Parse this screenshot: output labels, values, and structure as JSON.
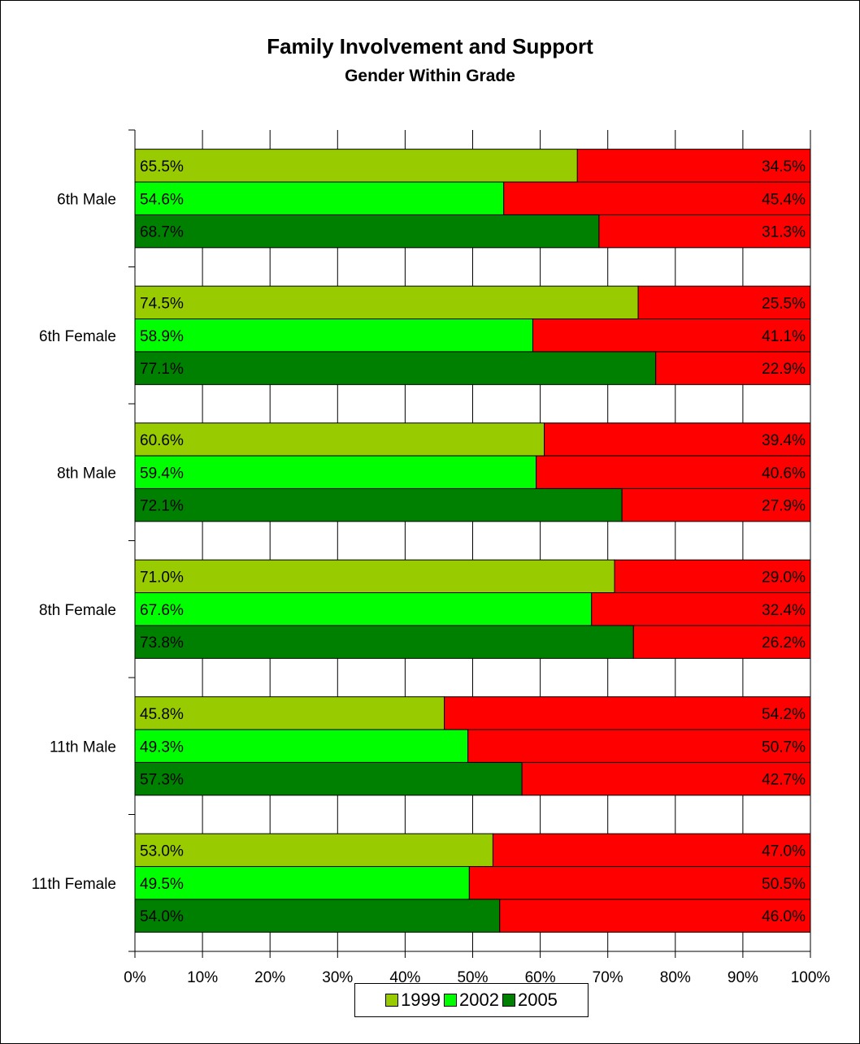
{
  "chart_data": {
    "type": "bar",
    "orientation": "horizontal",
    "stacked": "percent",
    "title": "Family Involvement and Support",
    "subtitle": "Gender Within Grade",
    "categories": [
      "6th Male",
      "6th Female",
      "8th Male",
      "8th Female",
      "11th Male",
      "11th Female"
    ],
    "series": [
      {
        "name": "1999",
        "color": "#99cc00",
        "values": [
          65.5,
          74.5,
          60.6,
          71.0,
          45.8,
          53.0
        ],
        "value_labels": [
          "65.5%",
          "74.5%",
          "60.6%",
          "71.0%",
          "45.8%",
          "53.0%"
        ]
      },
      {
        "name": "2002",
        "color": "#00ff00",
        "values": [
          54.6,
          58.9,
          59.4,
          67.6,
          49.3,
          49.5
        ],
        "value_labels": [
          "54.6%",
          "58.9%",
          "59.4%",
          "67.6%",
          "49.3%",
          "49.5%"
        ]
      },
      {
        "name": "2005",
        "color": "#008000",
        "values": [
          68.7,
          77.1,
          72.1,
          73.8,
          57.3,
          54.0
        ],
        "value_labels": [
          "68.7%",
          "77.1%",
          "72.1%",
          "73.8%",
          "57.3%",
          "54.0%"
        ]
      }
    ],
    "remainder": {
      "color": "#ff0000",
      "values": [
        [
          34.5,
          45.4,
          31.3
        ],
        [
          25.5,
          41.1,
          22.9
        ],
        [
          39.4,
          40.6,
          27.9
        ],
        [
          29.0,
          32.4,
          26.2
        ],
        [
          54.2,
          50.7,
          42.7
        ],
        [
          47.0,
          50.5,
          46.0
        ]
      ],
      "value_labels": [
        [
          "34.5%",
          "45.4%",
          "31.3%"
        ],
        [
          "25.5%",
          "41.1%",
          "22.9%"
        ],
        [
          "39.4%",
          "40.6%",
          "27.9%"
        ],
        [
          "29.0%",
          "32.4%",
          "26.2%"
        ],
        [
          "54.2%",
          "50.7%",
          "42.7%"
        ],
        [
          "47.0%",
          "50.5%",
          "46.0%"
        ]
      ]
    },
    "x_ticks": [
      "0%",
      "10%",
      "20%",
      "30%",
      "40%",
      "50%",
      "60%",
      "70%",
      "80%",
      "90%",
      "100%"
    ],
    "xlim": [
      0,
      100
    ],
    "grid": true,
    "legend_position": "bottom"
  }
}
